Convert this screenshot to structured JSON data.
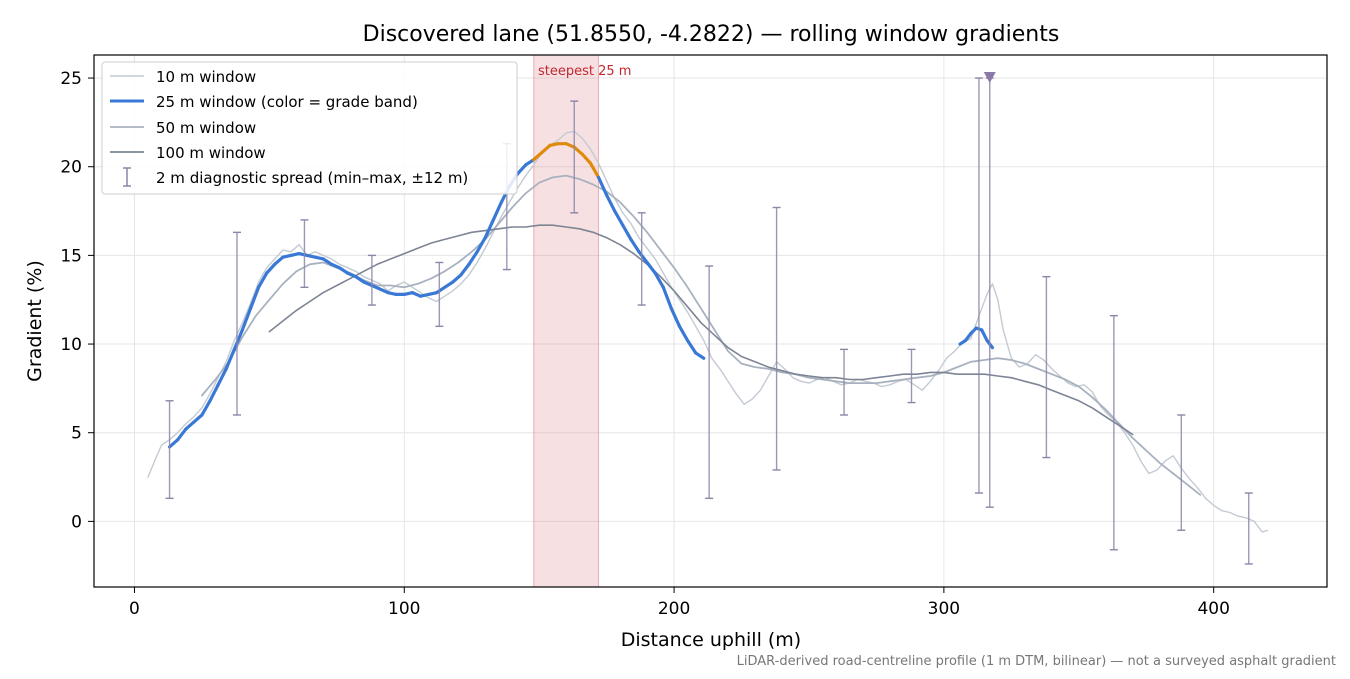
{
  "chart_data": {
    "type": "line",
    "title": "Discovered lane (51.8550, -4.2822) — rolling window gradients",
    "xlabel": "Distance uphill (m)",
    "ylabel": "Gradient (%)",
    "xlim": [
      -15,
      442
    ],
    "ylim": [
      -3.7,
      26.3
    ],
    "xticks": [
      0,
      100,
      200,
      300,
      400
    ],
    "yticks": [
      0,
      5,
      10,
      15,
      20,
      25
    ],
    "grid": true,
    "legend_position": "top-left",
    "footnote": "LiDAR-derived road-centreline profile (1 m DTM, bilinear) — not a surveyed asphalt gradient",
    "steepest_band": {
      "x_start": 148,
      "x_end": 172,
      "label": "steepest 25 m",
      "color": "#d9707a"
    },
    "max_marker": {
      "x": 317,
      "y": 25,
      "color": "#8b7aa8"
    },
    "grade_colors": {
      "normal": "#3a78d6",
      "steep": "#e08a0c"
    },
    "series": [
      {
        "name": "10 m window",
        "color": "#c3cad3",
        "x": [
          5,
          8,
          10,
          13,
          16,
          19,
          22,
          25,
          28,
          31,
          34,
          37,
          40,
          43,
          46,
          49,
          52,
          55,
          58,
          61,
          64,
          67,
          70,
          73,
          76,
          79,
          82,
          85,
          88,
          91,
          94,
          97,
          100,
          103,
          106,
          109,
          112,
          115,
          118,
          121,
          124,
          127,
          130,
          133,
          136,
          139,
          142,
          145,
          148,
          151,
          154,
          157,
          160,
          163,
          166,
          169,
          172,
          175,
          178,
          181,
          184,
          187,
          190,
          193,
          196,
          199,
          202,
          205,
          208,
          211,
          214,
          217,
          220,
          223,
          226,
          229,
          232,
          235,
          238,
          241,
          244,
          247,
          250,
          253,
          256,
          259,
          262,
          265,
          268,
          271,
          274,
          277,
          280,
          283,
          286,
          289,
          292,
          295,
          298,
          301,
          304,
          307,
          310,
          313,
          316,
          318,
          320,
          322,
          325,
          328,
          331,
          334,
          337,
          340,
          343,
          346,
          349,
          352,
          355,
          358,
          361,
          364,
          367,
          370,
          373,
          376,
          379,
          382,
          385,
          388,
          391,
          394,
          397,
          400,
          403,
          406,
          409,
          412,
          415,
          418,
          420
        ],
        "y": [
          2.5,
          3.6,
          4.3,
          4.6,
          5.0,
          5.5,
          5.9,
          6.4,
          7.2,
          8.1,
          9.0,
          10.2,
          11.2,
          12.3,
          13.5,
          14.3,
          14.8,
          15.3,
          15.2,
          15.6,
          15.0,
          15.2,
          15.0,
          14.8,
          14.5,
          14.3,
          14.1,
          13.8,
          13.6,
          13.4,
          13.0,
          13.3,
          13.5,
          13.2,
          12.9,
          12.6,
          12.4,
          12.7,
          13.0,
          13.4,
          13.9,
          14.6,
          15.4,
          16.3,
          17.2,
          18.0,
          18.8,
          19.5,
          20.1,
          20.8,
          21.2,
          21.5,
          21.9,
          22.0,
          21.6,
          21.0,
          20.2,
          19.2,
          18.2,
          17.4,
          16.8,
          16.0,
          15.4,
          14.8,
          14.0,
          13.2,
          12.5,
          11.8,
          11.0,
          10.2,
          9.2,
          8.6,
          7.9,
          7.2,
          6.6,
          6.9,
          7.4,
          8.2,
          9.0,
          8.6,
          8.1,
          7.9,
          7.8,
          8.0,
          8.1,
          7.9,
          7.7,
          7.8,
          8.0,
          7.9,
          7.8,
          7.6,
          7.7,
          7.9,
          8.0,
          7.7,
          7.4,
          7.9,
          8.5,
          9.2,
          9.6,
          10.1,
          10.3,
          11.6,
          12.8,
          13.4,
          12.5,
          10.8,
          9.2,
          8.7,
          8.9,
          9.4,
          9.1,
          8.6,
          8.2,
          7.8,
          7.6,
          7.7,
          7.3,
          6.5,
          6.0,
          5.6,
          5.0,
          4.3,
          3.4,
          2.7,
          2.9,
          3.4,
          3.7,
          3.0,
          2.4,
          1.9,
          1.3,
          0.9,
          0.6,
          0.5,
          0.3,
          0.2,
          0.0,
          -0.6,
          -0.5
        ]
      },
      {
        "name": "25 m window (color = grade band)",
        "color": "#3a78d6",
        "x": [
          13,
          16,
          19,
          22,
          25,
          28,
          31,
          34,
          37,
          40,
          43,
          46,
          49,
          52,
          55,
          58,
          61,
          64,
          67,
          70,
          73,
          76,
          79,
          82,
          85,
          88,
          91,
          94,
          97,
          100,
          103,
          106,
          109,
          112,
          115,
          118,
          121,
          124,
          127,
          130,
          133,
          136,
          139,
          142,
          145,
          148,
          151,
          154,
          157,
          160,
          163,
          166,
          169,
          172,
          175,
          178,
          181,
          184,
          187,
          190,
          193,
          196,
          199,
          202,
          205,
          208,
          211,
          306,
          308,
          310,
          312,
          314,
          316,
          318
        ],
        "y": [
          4.2,
          4.6,
          5.2,
          5.6,
          6.0,
          6.8,
          7.7,
          8.6,
          9.7,
          10.8,
          12.0,
          13.2,
          14.0,
          14.5,
          14.9,
          15.0,
          15.1,
          15.0,
          14.9,
          14.8,
          14.5,
          14.3,
          14.0,
          13.8,
          13.5,
          13.3,
          13.1,
          12.9,
          12.8,
          12.8,
          12.9,
          12.7,
          12.8,
          12.9,
          13.2,
          13.5,
          13.9,
          14.5,
          15.2,
          16.0,
          17.0,
          18.0,
          18.9,
          19.6,
          20.1,
          20.4,
          20.8,
          21.2,
          21.3,
          21.3,
          21.1,
          20.7,
          20.2,
          19.4,
          18.4,
          17.5,
          16.7,
          15.9,
          15.2,
          14.6,
          14.0,
          13.2,
          12.0,
          11.0,
          10.2,
          9.5,
          9.2,
          10.0,
          10.2,
          10.6,
          10.9,
          10.8,
          10.2,
          9.8
        ],
        "grade_band": [
          "normal",
          "normal",
          "normal",
          "normal",
          "normal",
          "normal",
          "normal",
          "normal",
          "normal",
          "normal",
          "normal",
          "normal",
          "normal",
          "normal",
          "normal",
          "normal",
          "normal",
          "normal",
          "normal",
          "normal",
          "normal",
          "normal",
          "normal",
          "normal",
          "normal",
          "normal",
          "normal",
          "normal",
          "normal",
          "normal",
          "normal",
          "normal",
          "normal",
          "normal",
          "normal",
          "normal",
          "normal",
          "normal",
          "normal",
          "normal",
          "normal",
          "normal",
          "normal",
          "normal",
          "normal",
          "steep",
          "steep",
          "steep",
          "steep",
          "steep",
          "steep",
          "steep",
          "steep",
          "normal",
          "normal",
          "normal",
          "normal",
          "normal",
          "normal",
          "normal",
          "normal",
          "normal",
          "normal",
          "normal",
          "normal",
          "normal",
          "normal",
          "normal",
          "normal",
          "normal",
          "normal",
          "normal",
          "normal",
          "normal"
        ]
      },
      {
        "name": "50 m window",
        "color": "#a8b2bf",
        "x": [
          25,
          30,
          35,
          40,
          45,
          50,
          55,
          60,
          65,
          70,
          75,
          80,
          85,
          90,
          95,
          100,
          105,
          110,
          115,
          120,
          125,
          130,
          135,
          140,
          145,
          150,
          155,
          160,
          165,
          170,
          175,
          180,
          185,
          190,
          195,
          200,
          205,
          210,
          215,
          220,
          225,
          230,
          235,
          240,
          245,
          250,
          255,
          260,
          265,
          270,
          275,
          280,
          285,
          290,
          295,
          300,
          305,
          310,
          315,
          320,
          325,
          330,
          335,
          340,
          345,
          350,
          355,
          360,
          365,
          370,
          375,
          380,
          385,
          390,
          395
        ],
        "y": [
          7.1,
          8.0,
          9.0,
          10.4,
          11.6,
          12.5,
          13.4,
          14.1,
          14.5,
          14.6,
          14.3,
          14.0,
          13.6,
          13.3,
          13.3,
          13.2,
          13.4,
          13.7,
          14.1,
          14.6,
          15.2,
          15.9,
          16.8,
          17.7,
          18.5,
          19.1,
          19.4,
          19.5,
          19.3,
          19.0,
          18.6,
          18.0,
          17.2,
          16.3,
          15.3,
          14.3,
          13.2,
          12.0,
          10.8,
          9.6,
          8.9,
          8.7,
          8.6,
          8.4,
          8.3,
          8.1,
          8.0,
          7.9,
          7.8,
          7.8,
          7.8,
          7.9,
          8.0,
          8.1,
          8.2,
          8.4,
          8.7,
          9.0,
          9.1,
          9.2,
          9.1,
          8.9,
          8.6,
          8.3,
          8.0,
          7.6,
          7.0,
          6.3,
          5.5,
          4.7,
          4.0,
          3.3,
          2.7,
          2.1,
          1.5
        ]
      },
      {
        "name": "100 m window",
        "color": "#7d8594",
        "x": [
          50,
          55,
          60,
          65,
          70,
          75,
          80,
          85,
          90,
          95,
          100,
          105,
          110,
          115,
          120,
          125,
          130,
          135,
          140,
          145,
          150,
          155,
          160,
          165,
          170,
          175,
          180,
          185,
          190,
          195,
          200,
          205,
          210,
          215,
          220,
          225,
          230,
          235,
          240,
          245,
          250,
          255,
          260,
          265,
          270,
          275,
          280,
          285,
          290,
          295,
          300,
          305,
          310,
          315,
          320,
          325,
          330,
          335,
          340,
          345,
          350,
          355,
          360,
          365,
          370
        ],
        "y": [
          10.7,
          11.3,
          11.9,
          12.4,
          12.9,
          13.3,
          13.7,
          14.1,
          14.5,
          14.8,
          15.1,
          15.4,
          15.7,
          15.9,
          16.1,
          16.3,
          16.4,
          16.5,
          16.6,
          16.6,
          16.7,
          16.7,
          16.6,
          16.5,
          16.3,
          16.0,
          15.6,
          15.1,
          14.5,
          13.8,
          13.0,
          12.1,
          11.2,
          10.5,
          9.8,
          9.3,
          9.0,
          8.7,
          8.5,
          8.3,
          8.2,
          8.1,
          8.1,
          8.0,
          8.0,
          8.1,
          8.2,
          8.3,
          8.3,
          8.4,
          8.4,
          8.3,
          8.3,
          8.3,
          8.2,
          8.1,
          7.9,
          7.7,
          7.4,
          7.1,
          6.8,
          6.4,
          5.9,
          5.4,
          4.9
        ]
      }
    ],
    "diagnostic_spread": {
      "name": "2 m diagnostic spread (min–max, ±12 m)",
      "color": "#8b85a8",
      "points": [
        {
          "x": 13,
          "min": 1.3,
          "max": 6.8
        },
        {
          "x": 38,
          "min": 6.0,
          "max": 16.3
        },
        {
          "x": 63,
          "min": 13.2,
          "max": 17.0
        },
        {
          "x": 88,
          "min": 12.2,
          "max": 15.0
        },
        {
          "x": 113,
          "min": 11.0,
          "max": 14.6
        },
        {
          "x": 138,
          "min": 14.2,
          "max": 21.3
        },
        {
          "x": 163,
          "min": 17.4,
          "max": 23.7
        },
        {
          "x": 188,
          "min": 12.2,
          "max": 17.4
        },
        {
          "x": 213,
          "min": 1.3,
          "max": 14.4
        },
        {
          "x": 238,
          "min": 2.9,
          "max": 17.7
        },
        {
          "x": 263,
          "min": 6.0,
          "max": 9.7
        },
        {
          "x": 288,
          "min": 6.7,
          "max": 9.7
        },
        {
          "x": 313,
          "min": 1.6,
          "max": 25.0
        },
        {
          "x": 317,
          "min": 0.8,
          "max": 25.0
        },
        {
          "x": 338,
          "min": 3.6,
          "max": 13.8
        },
        {
          "x": 363,
          "min": -1.6,
          "max": 11.6
        },
        {
          "x": 388,
          "min": -0.5,
          "max": 6.0
        },
        {
          "x": 413,
          "min": -2.4,
          "max": 1.6
        }
      ]
    }
  }
}
